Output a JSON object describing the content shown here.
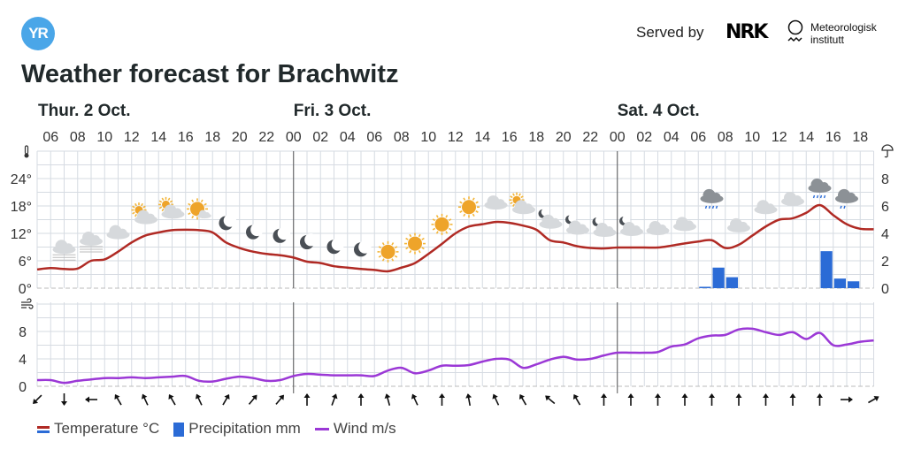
{
  "header": {
    "logo_text": "YR",
    "served_by": "Served by",
    "nrk_logo": "NRK",
    "met_line1": "Meteorologisk",
    "met_line2": "institutt",
    "title": "Weather forecast for Brachwitz"
  },
  "legend": {
    "temperature": "Temperature °C",
    "precipitation": "Precipitation mm",
    "wind": "Wind m/s"
  },
  "colors": {
    "temperature": "#b02a24",
    "precipitation": "#2b6bd6",
    "wind": "#9b38d6",
    "grid": "#d6dbe2",
    "logo": "#4aa6e8"
  },
  "chart_data": {
    "type": "line",
    "x_start": "Thu 05:00",
    "x_step_hours": 1,
    "days": [
      {
        "label": "Thur. 2 Oct.",
        "hour_index": 0
      },
      {
        "label": "Fri. 3 Oct.",
        "hour_index": 19
      },
      {
        "label": "Sat. 4 Oct.",
        "hour_index": 43
      }
    ],
    "hour_ticks": [
      "06",
      "08",
      "10",
      "12",
      "14",
      "16",
      "18",
      "20",
      "22",
      "00",
      "02",
      "04",
      "06",
      "08",
      "10",
      "12",
      "14",
      "16",
      "18",
      "20",
      "22",
      "00",
      "02",
      "04",
      "06",
      "08",
      "10",
      "12",
      "14",
      "16",
      "18"
    ],
    "temperature_axis": {
      "ticks": [
        "0°",
        "6°",
        "12°",
        "18°",
        "24°"
      ],
      "values": [
        0,
        6,
        12,
        18,
        24
      ],
      "range": [
        0,
        30
      ]
    },
    "precipitation_axis": {
      "ticks": [
        "0",
        "2",
        "4",
        "6",
        "8"
      ],
      "values": [
        0,
        2,
        4,
        6,
        8
      ],
      "range": [
        0,
        10
      ]
    },
    "wind_axis": {
      "ticks": [
        "0",
        "4",
        "8"
      ],
      "values": [
        0,
        4,
        8
      ],
      "range": [
        0,
        12
      ]
    },
    "series": [
      {
        "name": "Temperature °C",
        "type": "line",
        "values": [
          4.1,
          4.4,
          4.2,
          4.3,
          6.0,
          6.3,
          8.0,
          10.0,
          11.5,
          12.2,
          12.7,
          12.8,
          12.7,
          12.2,
          10.0,
          8.8,
          8.0,
          7.5,
          7.2,
          6.7,
          5.8,
          5.5,
          4.8,
          4.5,
          4.2,
          4.0,
          3.7,
          4.5,
          5.5,
          7.5,
          9.7,
          12.0,
          13.5,
          14.0,
          14.5,
          14.3,
          13.7,
          12.8,
          10.5,
          10.0,
          9.2,
          8.8,
          8.7,
          8.9,
          8.9,
          8.9,
          8.9,
          9.3,
          9.8,
          10.2,
          10.5,
          8.8,
          9.5,
          11.5,
          13.5,
          15.0,
          15.3,
          16.5,
          18.2,
          16.0,
          14.0,
          13.0,
          12.9
        ]
      },
      {
        "name": "Precipitation mm",
        "type": "bar",
        "bars": [
          {
            "hour_index": 49,
            "value": 0.1
          },
          {
            "hour_index": 50,
            "value": 1.5
          },
          {
            "hour_index": 51,
            "value": 0.8
          },
          {
            "hour_index": 58,
            "value": 2.7
          },
          {
            "hour_index": 59,
            "value": 0.7
          },
          {
            "hour_index": 60,
            "value": 0.5
          }
        ]
      },
      {
        "name": "Wind m/s",
        "type": "line",
        "values": [
          0.9,
          0.9,
          0.5,
          0.8,
          1.0,
          1.2,
          1.2,
          1.3,
          1.2,
          1.3,
          1.4,
          1.5,
          0.8,
          0.7,
          1.1,
          1.4,
          1.2,
          0.8,
          0.9,
          1.5,
          1.8,
          1.7,
          1.6,
          1.6,
          1.6,
          1.5,
          2.3,
          2.7,
          1.9,
          2.3,
          3.0,
          3.0,
          3.1,
          3.6,
          4.0,
          3.9,
          2.7,
          3.2,
          3.9,
          4.3,
          3.9,
          4.0,
          4.5,
          4.9,
          4.9,
          4.9,
          5.0,
          5.8,
          6.1,
          7.0,
          7.4,
          7.5,
          8.3,
          8.4,
          7.9,
          7.5,
          7.9,
          6.9,
          7.8,
          6.0,
          6.1,
          6.5,
          6.7
        ]
      }
    ],
    "wind_directions_deg": [
      225,
      180,
      270,
      330,
      335,
      330,
      335,
      30,
      40,
      40,
      0,
      20,
      0,
      345,
      335,
      0,
      350,
      335,
      330,
      310,
      330,
      0,
      0,
      0,
      0,
      0,
      0,
      0,
      0,
      0,
      90,
      60
    ],
    "weather_symbols": [
      {
        "hour_index": 2,
        "symbol": "fog"
      },
      {
        "hour_index": 4,
        "symbol": "fog"
      },
      {
        "hour_index": 6,
        "symbol": "cloudy"
      },
      {
        "hour_index": 8,
        "symbol": "partlycloudy-day"
      },
      {
        "hour_index": 10,
        "symbol": "partlycloudy-day"
      },
      {
        "hour_index": 12,
        "symbol": "fair-day"
      },
      {
        "hour_index": 14,
        "symbol": "clearsky-night"
      },
      {
        "hour_index": 16,
        "symbol": "clearsky-night"
      },
      {
        "hour_index": 18,
        "symbol": "clearsky-night"
      },
      {
        "hour_index": 20,
        "symbol": "clearsky-night"
      },
      {
        "hour_index": 22,
        "symbol": "clearsky-night"
      },
      {
        "hour_index": 24,
        "symbol": "clearsky-night"
      },
      {
        "hour_index": 26,
        "symbol": "clearsky-day"
      },
      {
        "hour_index": 28,
        "symbol": "clearsky-day"
      },
      {
        "hour_index": 30,
        "symbol": "clearsky-day"
      },
      {
        "hour_index": 32,
        "symbol": "clearsky-day"
      },
      {
        "hour_index": 34,
        "symbol": "cloudy"
      },
      {
        "hour_index": 36,
        "symbol": "partlycloudy-day"
      },
      {
        "hour_index": 38,
        "symbol": "partlycloudy-night"
      },
      {
        "hour_index": 40,
        "symbol": "partlycloudy-night"
      },
      {
        "hour_index": 42,
        "symbol": "partlycloudy-night"
      },
      {
        "hour_index": 44,
        "symbol": "partlycloudy-night"
      },
      {
        "hour_index": 46,
        "symbol": "cloudy"
      },
      {
        "hour_index": 48,
        "symbol": "cloudy"
      },
      {
        "hour_index": 50,
        "symbol": "rain"
      },
      {
        "hour_index": 52,
        "symbol": "cloudy"
      },
      {
        "hour_index": 54,
        "symbol": "cloudy"
      },
      {
        "hour_index": 56,
        "symbol": "cloudy"
      },
      {
        "hour_index": 58,
        "symbol": "rain"
      },
      {
        "hour_index": 60,
        "symbol": "lightrain"
      }
    ]
  }
}
